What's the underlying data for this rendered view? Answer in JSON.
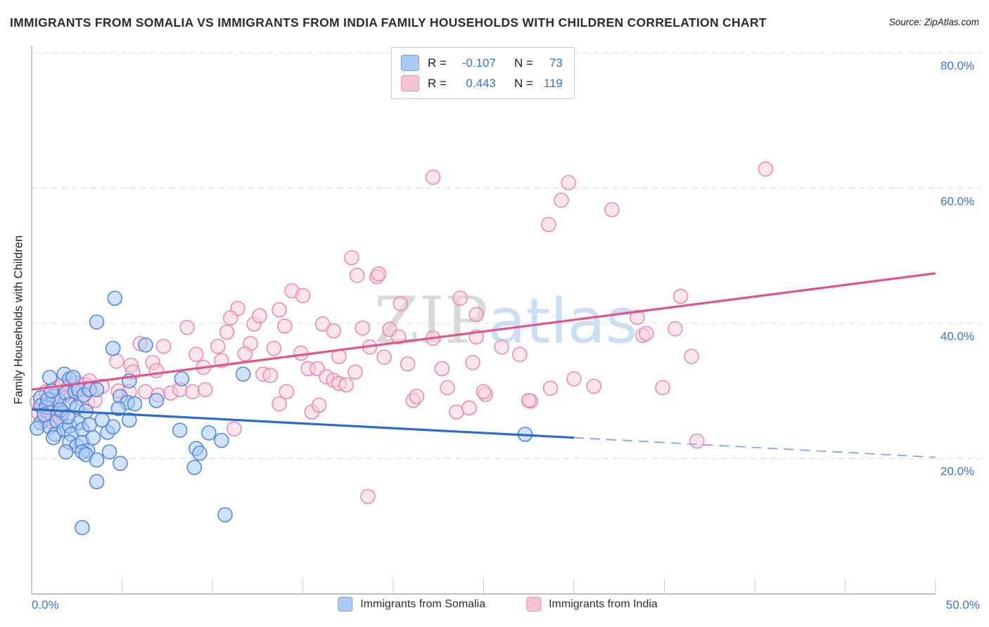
{
  "title": "IMMIGRANTS FROM SOMALIA VS IMMIGRANTS FROM INDIA FAMILY HOUSEHOLDS WITH CHILDREN CORRELATION CHART",
  "source": "Source: ZipAtlas.com",
  "watermark": {
    "zip": "ZIP",
    "atlas": "atlas"
  },
  "y_axis_label": "Family Households with Children",
  "legend_box": {
    "rows": [
      {
        "r_label": "R =",
        "r_value": "-0.107",
        "n_label": "N =",
        "n_value": "73"
      },
      {
        "r_label": "R =",
        "r_value": "0.443",
        "n_label": "N =",
        "n_value": "119"
      }
    ]
  },
  "axis": {
    "x_min_label": "0.0%",
    "x_max_label": "50.0%",
    "y_tick_labels": [
      "80.0%",
      "60.0%",
      "40.0%",
      "20.0%"
    ]
  },
  "bottom_legend": {
    "items": [
      {
        "label": "Immigrants from Somalia"
      },
      {
        "label": "Immigrants from India"
      }
    ]
  },
  "colors": {
    "accent_text": "#3a72d8",
    "somalia_fill": "rgba(170,203,245,0.55)",
    "somalia_stroke": "#4f83d8",
    "india_fill": "rgba(250,206,222,0.5)",
    "india_stroke": "#ec86ad",
    "somalia_trend": "#2b6bcd",
    "somalia_trend_dashed": "#7fa6e0",
    "india_trend": "#e2558b",
    "grid": "#dcdcdc",
    "axis_line": "#9b9b9b",
    "tick_mark": "#c8c8c8"
  },
  "chart_data": {
    "type": "scatter",
    "title": "Immigrants from Somalia vs Immigrants from India Family Households with Children",
    "xlabel": "",
    "ylabel": "Family Households with Children",
    "xlim": [
      0,
      50
    ],
    "ylim": [
      0,
      81
    ],
    "x_tick_step": 5,
    "grid_y_percent": [
      20,
      40,
      60,
      80
    ],
    "legend_position": "bottom",
    "series": [
      {
        "name": "Immigrants from Somalia",
        "R": -0.107,
        "N": 73,
        "points": [
          [
            0.5,
            29.0
          ],
          [
            1.2,
            29.2
          ],
          [
            0.5,
            27.8
          ],
          [
            0.8,
            27.6
          ],
          [
            1.5,
            28.6
          ],
          [
            1.9,
            29.7
          ],
          [
            2.4,
            29.9
          ],
          [
            2.6,
            30.2
          ],
          [
            2.9,
            29.4
          ],
          [
            3.2,
            30.2
          ],
          [
            3.6,
            30.2
          ],
          [
            2.1,
            28.0
          ],
          [
            2.5,
            27.6
          ],
          [
            1.7,
            26.8
          ],
          [
            0.5,
            25.3
          ],
          [
            0.3,
            24.5
          ],
          [
            1.0,
            24.7
          ],
          [
            1.4,
            25.5
          ],
          [
            1.3,
            23.6
          ],
          [
            1.8,
            24.3
          ],
          [
            1.2,
            23.1
          ],
          [
            2.1,
            24.8
          ],
          [
            2.2,
            23.6
          ],
          [
            2.6,
            25.3
          ],
          [
            2.8,
            24.3
          ],
          [
            3.2,
            25.0
          ],
          [
            2.1,
            22.4
          ],
          [
            2.5,
            21.9
          ],
          [
            2.8,
            22.4
          ],
          [
            1.9,
            21.0
          ],
          [
            3.1,
            21.2
          ],
          [
            3.4,
            23.1
          ],
          [
            4.2,
            23.9
          ],
          [
            4.5,
            24.7
          ],
          [
            4.9,
            29.2
          ],
          [
            5.3,
            28.3
          ],
          [
            4.8,
            27.4
          ],
          [
            5.4,
            25.7
          ],
          [
            3.9,
            25.7
          ],
          [
            5.7,
            28.1
          ],
          [
            6.9,
            28.6
          ],
          [
            8.2,
            24.2
          ],
          [
            2.8,
            21.0
          ],
          [
            3.0,
            20.6
          ],
          [
            4.3,
            21.0
          ],
          [
            3.6,
            19.8
          ],
          [
            4.9,
            19.3
          ],
          [
            9.1,
            21.5
          ],
          [
            9.3,
            20.8
          ],
          [
            9.8,
            23.8
          ],
          [
            10.5,
            22.7
          ],
          [
            9.0,
            18.7
          ],
          [
            3.6,
            16.6
          ],
          [
            10.7,
            11.7
          ],
          [
            2.8,
            9.8
          ],
          [
            27.3,
            23.6
          ],
          [
            4.6,
            43.7
          ],
          [
            3.6,
            40.2
          ],
          [
            4.5,
            36.3
          ],
          [
            6.3,
            36.8
          ],
          [
            1.8,
            32.5
          ],
          [
            1.0,
            32.0
          ],
          [
            2.1,
            31.8
          ],
          [
            2.3,
            32.0
          ],
          [
            5.4,
            31.5
          ],
          [
            8.3,
            31.8
          ],
          [
            11.7,
            32.5
          ],
          [
            0.7,
            26.5
          ],
          [
            1.6,
            27.2
          ],
          [
            2.0,
            26.2
          ],
          [
            3.0,
            27.0
          ],
          [
            0.9,
            28.8
          ],
          [
            1.1,
            30.0
          ]
        ],
        "trend_solid": [
          [
            0,
            27.3
          ],
          [
            30,
            23.1
          ]
        ],
        "trend_dashed": [
          [
            30,
            23.1
          ],
          [
            50,
            20.2
          ]
        ]
      },
      {
        "name": "Immigrants from India",
        "R": 0.443,
        "N": 119,
        "points": [
          [
            0.3,
            28.4
          ],
          [
            0.6,
            28.1
          ],
          [
            0.4,
            26.7
          ],
          [
            0.9,
            26.7
          ],
          [
            1.2,
            27.6
          ],
          [
            1.4,
            26.7
          ],
          [
            0.7,
            25.7
          ],
          [
            1.1,
            25.5
          ],
          [
            1.6,
            25.7
          ],
          [
            1.8,
            29.4
          ],
          [
            2.2,
            29.1
          ],
          [
            2.7,
            28.9
          ],
          [
            3.1,
            28.3
          ],
          [
            3.5,
            28.6
          ],
          [
            0.8,
            29.9
          ],
          [
            1.3,
            30.4
          ],
          [
            1.7,
            30.9
          ],
          [
            2.1,
            30.9
          ],
          [
            2.7,
            31.0
          ],
          [
            3.0,
            30.9
          ],
          [
            3.9,
            30.7
          ],
          [
            4.8,
            30.0
          ],
          [
            5.4,
            29.9
          ],
          [
            6.3,
            29.9
          ],
          [
            7.0,
            29.4
          ],
          [
            7.7,
            29.7
          ],
          [
            8.2,
            30.2
          ],
          [
            8.9,
            29.9
          ],
          [
            9.6,
            30.2
          ],
          [
            6.0,
            37.0
          ],
          [
            7.3,
            36.6
          ],
          [
            8.6,
            39.4
          ],
          [
            11.4,
            42.2
          ],
          [
            11.0,
            40.8
          ],
          [
            10.8,
            38.7
          ],
          [
            12.3,
            39.9
          ],
          [
            12.1,
            37.0
          ],
          [
            10.3,
            36.6
          ],
          [
            9.1,
            35.4
          ],
          [
            4.7,
            34.4
          ],
          [
            5.5,
            33.8
          ],
          [
            5.6,
            32.8
          ],
          [
            6.7,
            34.2
          ],
          [
            6.9,
            33.0
          ],
          [
            3.2,
            31.5
          ],
          [
            2.5,
            31.2
          ],
          [
            13.7,
            28.1
          ],
          [
            15.5,
            26.9
          ],
          [
            15.9,
            27.9
          ],
          [
            11.2,
            24.4
          ],
          [
            18.6,
            14.4
          ],
          [
            21.1,
            28.6
          ],
          [
            23.5,
            26.9
          ],
          [
            24.2,
            27.5
          ],
          [
            25.1,
            29.5
          ],
          [
            27.6,
            28.5
          ],
          [
            28.7,
            30.4
          ],
          [
            35.9,
            44.0
          ],
          [
            33.5,
            40.9
          ],
          [
            33.8,
            38.2
          ],
          [
            34.0,
            38.5
          ],
          [
            35.6,
            39.2
          ],
          [
            27.0,
            35.4
          ],
          [
            36.5,
            35.1
          ],
          [
            30.0,
            31.8
          ],
          [
            31.1,
            30.7
          ],
          [
            34.9,
            30.5
          ],
          [
            27.5,
            28.6
          ],
          [
            36.8,
            22.6
          ],
          [
            18.0,
            47.1
          ],
          [
            19.1,
            46.9
          ],
          [
            14.4,
            44.8
          ],
          [
            15.0,
            44.1
          ],
          [
            13.7,
            42.0
          ],
          [
            12.6,
            41.1
          ],
          [
            14.0,
            39.6
          ],
          [
            16.1,
            39.9
          ],
          [
            16.7,
            38.9
          ],
          [
            18.3,
            39.3
          ],
          [
            19.8,
            39.1
          ],
          [
            20.4,
            42.9
          ],
          [
            20.3,
            38.0
          ],
          [
            22.2,
            37.8
          ],
          [
            24.6,
            38.0
          ],
          [
            23.7,
            43.7
          ],
          [
            24.6,
            41.3
          ],
          [
            13.4,
            36.3
          ],
          [
            14.9,
            35.6
          ],
          [
            17.0,
            35.1
          ],
          [
            18.7,
            36.5
          ],
          [
            12.8,
            32.5
          ],
          [
            13.2,
            32.3
          ],
          [
            15.3,
            33.3
          ],
          [
            15.8,
            33.3
          ],
          [
            16.3,
            32.1
          ],
          [
            16.7,
            31.6
          ],
          [
            17.0,
            31.1
          ],
          [
            17.4,
            30.9
          ],
          [
            17.9,
            32.8
          ],
          [
            22.7,
            33.3
          ],
          [
            24.4,
            34.2
          ],
          [
            14.1,
            29.9
          ],
          [
            21.3,
            29.2
          ],
          [
            25.0,
            29.9
          ],
          [
            17.7,
            49.7
          ],
          [
            19.2,
            47.3
          ],
          [
            22.2,
            61.6
          ],
          [
            29.7,
            60.8
          ],
          [
            29.3,
            58.2
          ],
          [
            28.6,
            54.6
          ],
          [
            32.1,
            56.8
          ],
          [
            40.6,
            62.8
          ],
          [
            9.5,
            33.5
          ],
          [
            10.5,
            34.5
          ],
          [
            11.8,
            35.5
          ],
          [
            19.5,
            35.0
          ],
          [
            20.8,
            34.0
          ],
          [
            26.0,
            36.5
          ],
          [
            23.0,
            30.5
          ]
        ],
        "trend_solid": [
          [
            0,
            30.2
          ],
          [
            50,
            47.4
          ]
        ]
      }
    ]
  }
}
